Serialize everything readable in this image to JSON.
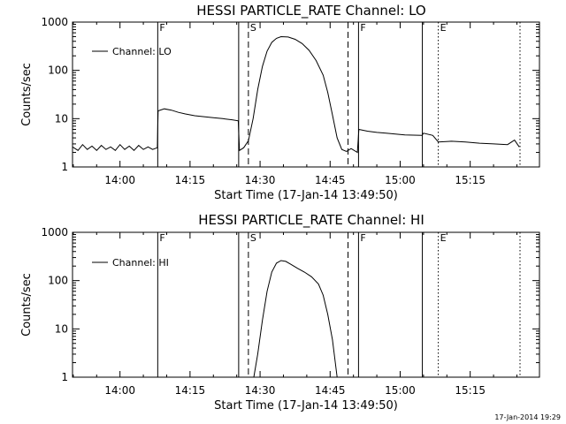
{
  "colors": {
    "background": "#ffffff",
    "ink": "#000000"
  },
  "footer_timestamp": "17-Jan-2014 19:29",
  "chart_data": [
    {
      "type": "line",
      "title": "HESSI PARTICLE_RATE Channel: LO",
      "xlabel": "Start Time (17-Jan-14 13:49:50)",
      "ylabel": "Counts/sec",
      "y_scale": "log",
      "ylim": [
        1,
        1000
      ],
      "y_ticks": [
        1,
        10,
        100,
        1000
      ],
      "y_tick_labels": [
        "1",
        "10",
        "100",
        "1000"
      ],
      "xlim": [
        "13:49:50",
        "15:29:50"
      ],
      "x_ticks": [
        "14:00",
        "14:15",
        "14:30",
        "14:45",
        "15:00",
        "15:15"
      ],
      "grid": false,
      "legend": {
        "position": "top-left",
        "entries": [
          "Channel: LO"
        ]
      },
      "markers": [
        {
          "time": "14:08:05",
          "style": "solid",
          "label": "F"
        },
        {
          "time": "14:25:25",
          "style": "solid",
          "label": ""
        },
        {
          "time": "14:27:30",
          "style": "dashed",
          "label": "S"
        },
        {
          "time": "14:48:50",
          "style": "dashed",
          "label": ""
        },
        {
          "time": "14:51:05",
          "style": "solid",
          "label": "F"
        },
        {
          "time": "15:04:45",
          "style": "solid",
          "label": ""
        },
        {
          "time": "15:08:10",
          "style": "dotted",
          "label": "E"
        },
        {
          "time": "15:25:40",
          "style": "dotted",
          "label": ""
        }
      ],
      "series": [
        {
          "name": "Channel: LO",
          "points": [
            [
              "13:49:50",
              2.6
            ],
            [
              "13:51:00",
              2.2
            ],
            [
              "13:52:00",
              2.9
            ],
            [
              "13:53:00",
              2.3
            ],
            [
              "13:54:00",
              2.7
            ],
            [
              "13:55:00",
              2.2
            ],
            [
              "13:56:00",
              2.8
            ],
            [
              "13:57:00",
              2.3
            ],
            [
              "13:58:00",
              2.6
            ],
            [
              "13:59:00",
              2.2
            ],
            [
              "14:00:00",
              2.9
            ],
            [
              "14:01:00",
              2.3
            ],
            [
              "14:02:00",
              2.7
            ],
            [
              "14:03:00",
              2.2
            ],
            [
              "14:04:00",
              2.8
            ],
            [
              "14:05:00",
              2.3
            ],
            [
              "14:06:00",
              2.6
            ],
            [
              "14:07:00",
              2.3
            ],
            [
              "14:08:00",
              2.5
            ],
            [
              "14:08:10",
              14.5
            ],
            [
              "14:09:30",
              16.0
            ],
            [
              "14:11:00",
              15.0
            ],
            [
              "14:12:30",
              13.5
            ],
            [
              "14:14:00",
              12.5
            ],
            [
              "14:16:00",
              11.5
            ],
            [
              "14:18:00",
              11.0
            ],
            [
              "14:20:00",
              10.5
            ],
            [
              "14:22:00",
              10.0
            ],
            [
              "14:24:00",
              9.5
            ],
            [
              "14:25:20",
              9.0
            ],
            [
              "14:25:35",
              2.2
            ],
            [
              "14:26:30",
              2.5
            ],
            [
              "14:27:30",
              3.5
            ],
            [
              "14:28:30",
              10.0
            ],
            [
              "14:29:30",
              40.0
            ],
            [
              "14:30:30",
              120.0
            ],
            [
              "14:31:30",
              250.0
            ],
            [
              "14:32:30",
              380.0
            ],
            [
              "14:33:30",
              460.0
            ],
            [
              "14:34:30",
              500.0
            ],
            [
              "14:36:00",
              490.0
            ],
            [
              "14:37:30",
              440.0
            ],
            [
              "14:39:00",
              360.0
            ],
            [
              "14:40:30",
              260.0
            ],
            [
              "14:42:00",
              160.0
            ],
            [
              "14:43:30",
              80.0
            ],
            [
              "14:44:30",
              35.0
            ],
            [
              "14:45:30",
              12.0
            ],
            [
              "14:46:30",
              4.0
            ],
            [
              "14:47:30",
              2.3
            ],
            [
              "14:48:30",
              2.1
            ],
            [
              "14:49:30",
              2.4
            ],
            [
              "14:50:50",
              2.0
            ],
            [
              "14:51:10",
              6.0
            ],
            [
              "14:53:00",
              5.5
            ],
            [
              "14:55:00",
              5.2
            ],
            [
              "14:57:00",
              5.0
            ],
            [
              "14:59:00",
              4.8
            ],
            [
              "15:01:00",
              4.6
            ],
            [
              "15:04:40",
              4.5
            ],
            [
              "15:05:00",
              5.0
            ],
            [
              "15:07:00",
              4.5
            ],
            [
              "15:08:10",
              3.3
            ],
            [
              "15:11:00",
              3.4
            ],
            [
              "15:14:00",
              3.3
            ],
            [
              "15:17:00",
              3.1
            ],
            [
              "15:20:00",
              3.0
            ],
            [
              "15:23:00",
              2.9
            ],
            [
              "15:24:30",
              3.6
            ],
            [
              "15:25:30",
              2.6
            ]
          ]
        }
      ]
    },
    {
      "type": "line",
      "title": "HESSI PARTICLE_RATE Channel: HI",
      "xlabel": "Start Time (17-Jan-14 13:49:50)",
      "ylabel": "Counts/sec",
      "y_scale": "log",
      "ylim": [
        1,
        1000
      ],
      "y_ticks": [
        1,
        10,
        100,
        1000
      ],
      "y_tick_labels": [
        "1",
        "10",
        "100",
        "1000"
      ],
      "xlim": [
        "13:49:50",
        "15:29:50"
      ],
      "x_ticks": [
        "14:00",
        "14:15",
        "14:30",
        "14:45",
        "15:00",
        "15:15"
      ],
      "grid": false,
      "legend": {
        "position": "top-left",
        "entries": [
          "Channel: HI"
        ]
      },
      "markers": [
        {
          "time": "14:08:05",
          "style": "solid",
          "label": "F"
        },
        {
          "time": "14:25:25",
          "style": "solid",
          "label": ""
        },
        {
          "time": "14:27:30",
          "style": "dashed",
          "label": "S"
        },
        {
          "time": "14:48:50",
          "style": "dashed",
          "label": ""
        },
        {
          "time": "14:51:05",
          "style": "solid",
          "label": "F"
        },
        {
          "time": "15:04:45",
          "style": "solid",
          "label": ""
        },
        {
          "time": "15:08:10",
          "style": "dotted",
          "label": "E"
        },
        {
          "time": "15:25:40",
          "style": "dotted",
          "label": ""
        }
      ],
      "series": [
        {
          "name": "Channel: HI",
          "points": [
            [
              "14:28:40",
              1.0
            ],
            [
              "14:29:30",
              3.0
            ],
            [
              "14:30:30",
              15.0
            ],
            [
              "14:31:30",
              60.0
            ],
            [
              "14:32:30",
              150.0
            ],
            [
              "14:33:30",
              230.0
            ],
            [
              "14:34:30",
              260.0
            ],
            [
              "14:35:30",
              250.0
            ],
            [
              "14:36:30",
              220.0
            ],
            [
              "14:38:00",
              180.0
            ],
            [
              "14:39:30",
              150.0
            ],
            [
              "14:41:00",
              120.0
            ],
            [
              "14:42:30",
              85.0
            ],
            [
              "14:43:30",
              50.0
            ],
            [
              "14:44:30",
              20.0
            ],
            [
              "14:45:30",
              6.0
            ],
            [
              "14:46:30",
              1.0
            ]
          ]
        }
      ]
    }
  ]
}
